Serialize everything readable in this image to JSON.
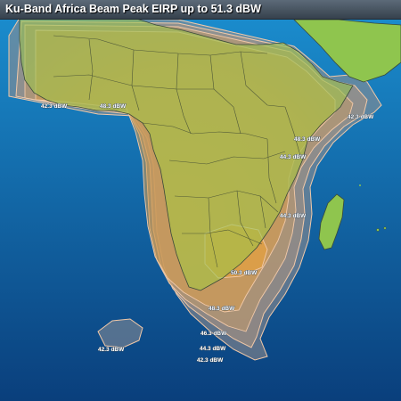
{
  "title": "Ku-Band Africa Beam Peak EIRP up to 51.3 dBW",
  "contour_labels": {
    "west_outer": "42.3 dBW",
    "west_inner": "48.3 dBW",
    "horn_outer": "42.3 dBW",
    "east_inner": "48.3 dBW",
    "east_mid": "44.3 dBW",
    "mozambique": "44.3 dBW",
    "peak": "50.3 dBW",
    "south_48": "48.3 dBW",
    "south_46": "46.3 dBW",
    "south_44": "44.3 dBW",
    "south_42": "42.3 dBW",
    "sw_island": "42.3 dBW"
  },
  "colors": {
    "ocean_top": "#1b8fd0",
    "ocean_bottom": "#0a3f7c",
    "land": "#8fc54e",
    "coverage_core": "#e8a43c",
    "coverage_mid": "#c99a45",
    "coverage_outer": "#a8927a",
    "contour_line": "#f0c7a0"
  }
}
